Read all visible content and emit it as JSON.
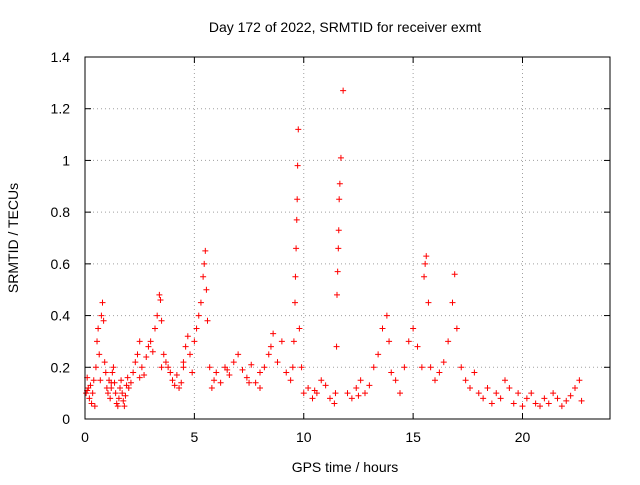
{
  "chart_data": {
    "type": "scatter",
    "title": "Day 172 of 2022, SRMTID for receiver exmt",
    "xlabel": "GPS time / hours",
    "ylabel": "SRMTID / TECUs",
    "xlim": [
      0,
      24
    ],
    "ylim": [
      0,
      1.4
    ],
    "xticks": [
      0,
      5,
      10,
      15,
      20
    ],
    "xtick_labels": [
      "0",
      "5",
      "10",
      "15",
      "20"
    ],
    "yticks": [
      0,
      0.2,
      0.4,
      0.6,
      0.8,
      1.0,
      1.2,
      1.4
    ],
    "ytick_labels": [
      "0",
      "0.2",
      "0.4",
      "0.6",
      "0.8",
      "1",
      "1.2",
      "1.4"
    ],
    "grid": true,
    "marker": "+",
    "series": [
      {
        "name": "SRMTID",
        "color": "#ff0000",
        "x": [
          0.05,
          0.1,
          0.15,
          0.2,
          0.25,
          0.3,
          0.35,
          0.4,
          0.45,
          0.5,
          0.55,
          0.6,
          0.65,
          0.7,
          0.75,
          0.8,
          0.85,
          0.9,
          0.95,
          1.0,
          1.05,
          1.1,
          1.15,
          1.2,
          1.25,
          1.3,
          1.35,
          1.4,
          1.45,
          1.5,
          1.55,
          1.6,
          1.65,
          1.7,
          1.75,
          1.8,
          1.85,
          1.9,
          1.95,
          2.0,
          2.1,
          2.2,
          2.3,
          2.4,
          2.5,
          2.6,
          2.7,
          2.8,
          2.9,
          3.0,
          3.1,
          3.2,
          3.3,
          3.4,
          3.45,
          3.5,
          3.6,
          3.7,
          3.8,
          3.9,
          4.0,
          4.1,
          4.2,
          4.3,
          4.4,
          4.5,
          4.6,
          4.7,
          4.8,
          4.9,
          5.0,
          5.1,
          5.2,
          5.3,
          5.4,
          5.45,
          5.5,
          5.55,
          5.6,
          5.7,
          5.8,
          5.9,
          6.0,
          6.2,
          6.4,
          6.6,
          6.8,
          7.0,
          7.2,
          7.4,
          7.6,
          7.8,
          8.0,
          8.2,
          8.4,
          8.5,
          8.6,
          8.8,
          9.0,
          9.2,
          9.4,
          9.5,
          9.55,
          9.6,
          9.62,
          9.65,
          9.68,
          9.7,
          9.72,
          9.75,
          9.8,
          9.9,
          10.0,
          10.2,
          10.4,
          10.6,
          10.8,
          11.0,
          11.2,
          11.4,
          11.45,
          11.5,
          11.52,
          11.55,
          11.58,
          11.6,
          11.62,
          11.65,
          11.7,
          11.8,
          12.0,
          12.2,
          12.4,
          12.6,
          12.8,
          13.0,
          13.2,
          13.4,
          13.6,
          13.8,
          13.9,
          14.0,
          14.2,
          14.4,
          14.6,
          14.8,
          15.0,
          15.2,
          15.4,
          15.5,
          15.55,
          15.6,
          15.7,
          15.8,
          16.0,
          16.2,
          16.4,
          16.6,
          16.8,
          16.9,
          17.0,
          17.2,
          17.4,
          17.6,
          17.8,
          18.0,
          18.2,
          18.4,
          18.6,
          18.8,
          19.0,
          19.2,
          19.4,
          19.6,
          19.8,
          20.0,
          20.2,
          20.4,
          20.6,
          20.8,
          21.0,
          21.2,
          21.4,
          21.6,
          21.8,
          22.0,
          22.2,
          22.4,
          22.6,
          22.7,
          0.1,
          1.2,
          2.5,
          3.5,
          4.5,
          6.5,
          7.5,
          8.0,
          10.5,
          12.5
        ],
        "y": [
          0.1,
          0.16,
          0.12,
          0.08,
          0.13,
          0.06,
          0.1,
          0.15,
          0.05,
          0.2,
          0.3,
          0.35,
          0.25,
          0.15,
          0.4,
          0.45,
          0.38,
          0.22,
          0.18,
          0.12,
          0.1,
          0.15,
          0.08,
          0.12,
          0.18,
          0.2,
          0.14,
          0.1,
          0.06,
          0.05,
          0.08,
          0.12,
          0.15,
          0.1,
          0.07,
          0.05,
          0.09,
          0.13,
          0.16,
          0.12,
          0.14,
          0.18,
          0.22,
          0.25,
          0.3,
          0.2,
          0.17,
          0.24,
          0.28,
          0.3,
          0.26,
          0.35,
          0.4,
          0.48,
          0.46,
          0.38,
          0.25,
          0.22,
          0.2,
          0.18,
          0.15,
          0.13,
          0.17,
          0.12,
          0.14,
          0.2,
          0.28,
          0.32,
          0.25,
          0.18,
          0.3,
          0.35,
          0.4,
          0.45,
          0.55,
          0.6,
          0.65,
          0.5,
          0.38,
          0.2,
          0.12,
          0.15,
          0.18,
          0.14,
          0.2,
          0.17,
          0.22,
          0.25,
          0.19,
          0.16,
          0.21,
          0.14,
          0.18,
          0.2,
          0.25,
          0.28,
          0.33,
          0.22,
          0.3,
          0.18,
          0.15,
          0.2,
          0.3,
          0.45,
          0.55,
          0.66,
          0.77,
          0.85,
          0.98,
          1.12,
          0.35,
          0.2,
          0.1,
          0.12,
          0.08,
          0.1,
          0.15,
          0.13,
          0.08,
          0.06,
          0.1,
          0.28,
          0.48,
          0.57,
          0.66,
          0.73,
          0.85,
          0.91,
          1.01,
          1.27,
          0.1,
          0.08,
          0.12,
          0.15,
          0.1,
          0.13,
          0.2,
          0.25,
          0.35,
          0.4,
          0.3,
          0.18,
          0.15,
          0.1,
          0.2,
          0.3,
          0.35,
          0.28,
          0.2,
          0.55,
          0.6,
          0.63,
          0.45,
          0.2,
          0.15,
          0.18,
          0.22,
          0.3,
          0.45,
          0.56,
          0.35,
          0.2,
          0.15,
          0.12,
          0.18,
          0.1,
          0.08,
          0.12,
          0.06,
          0.1,
          0.08,
          0.15,
          0.12,
          0.06,
          0.1,
          0.05,
          0.08,
          0.1,
          0.06,
          0.05,
          0.08,
          0.06,
          0.1,
          0.08,
          0.05,
          0.07,
          0.09,
          0.12,
          0.15,
          0.07,
          0.11,
          0.14,
          0.16,
          0.2,
          0.22,
          0.19,
          0.14,
          0.12,
          0.11,
          0.09
        ]
      }
    ]
  }
}
